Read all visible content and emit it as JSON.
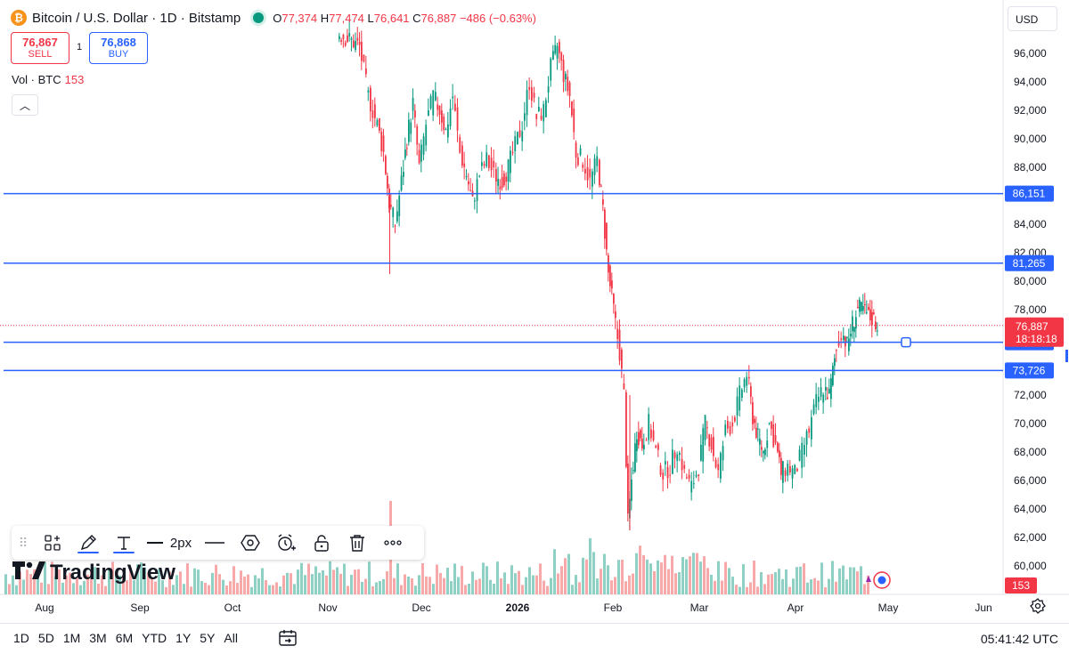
{
  "header": {
    "symbol_title": "Bitcoin / U.S. Dollar · 1D · Bitstamp",
    "coin_glyph": "₿",
    "ohlc": {
      "o_label": "O",
      "o": "77,374",
      "h_label": "H",
      "h": "77,474",
      "l_label": "L",
      "l": "76,641",
      "c_label": "C",
      "c": "76,887",
      "change": "−486 (−0.63%)"
    }
  },
  "trade": {
    "sell_price": "76,867",
    "sell_label": "SELL",
    "buy_price": "76,868",
    "buy_label": "BUY",
    "spread": "1"
  },
  "volume_label": {
    "title": "Vol · BTC",
    "value": "153"
  },
  "currency": "USD",
  "colors": {
    "up": "#089981",
    "down": "#f23645",
    "line": "#2962ff",
    "up_vol": "#8fd0c4",
    "down_vol": "#f7a9a9"
  },
  "drawing_toolbar": {
    "grip": "⠿",
    "width_label": "2px",
    "icons": [
      "widgets-icon",
      "pencil-icon",
      "text-icon",
      "line-width-icon",
      "line-style-icon",
      "hexagon-icon",
      "alert-icon",
      "lock-icon",
      "trash-icon",
      "more-icon"
    ]
  },
  "logo_text": "TradingView",
  "time_ranges": [
    "1D",
    "5D",
    "1M",
    "3M",
    "6M",
    "YTD",
    "1Y",
    "5Y",
    "All"
  ],
  "clock": "05:41:42 UTC",
  "chart_data": {
    "type": "candlestick",
    "y_ticks": [
      "96,000",
      "94,000",
      "92,000",
      "90,000",
      "88,000",
      "84,000",
      "82,000",
      "80,000",
      "78,000",
      "72,000",
      "70,000",
      "68,000",
      "66,000",
      "64,000",
      "62,000",
      "60,000"
    ],
    "x_ticks": [
      "Aug",
      "Sep",
      "Oct",
      "Nov",
      "Dec",
      "2026",
      "Feb",
      "Mar",
      "Apr",
      "May",
      "Jun"
    ],
    "horizontal_lines": [
      {
        "value": 86151,
        "label": "86,151"
      },
      {
        "value": 81265,
        "label": "81,265"
      },
      {
        "value": 75713,
        "label": "75,713"
      },
      {
        "value": 73726,
        "label": "73,726"
      }
    ],
    "last_price": {
      "value": 76887,
      "label": "76,887",
      "countdown": "18:18:18"
    },
    "volume_last": "153"
  }
}
